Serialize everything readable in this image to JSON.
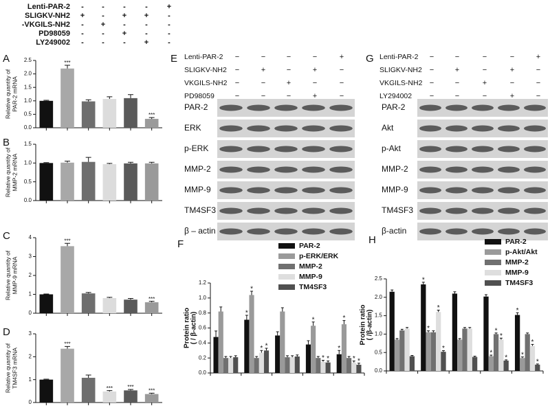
{
  "treatment_table": {
    "rows": [
      {
        "label": "Lenti-PAR-2",
        "marks": [
          "-",
          "-",
          "-",
          "-",
          "+"
        ]
      },
      {
        "label": "SLIGKV-NH2",
        "marks": [
          "+",
          "-",
          "+",
          "+",
          "-"
        ]
      },
      {
        "label": "-VKGILS-NH2",
        "marks": [
          "-",
          "+",
          "-",
          "-",
          "-"
        ]
      },
      {
        "label": "PD98059",
        "marks": [
          "-",
          "-",
          "+",
          "-",
          "-"
        ]
      },
      {
        "label": "LY249002",
        "marks": [
          "-",
          "-",
          "-",
          "+",
          "-"
        ]
      }
    ]
  },
  "blots": [
    {
      "panel": "E",
      "treatments": [
        {
          "label": "Lenti-PAR-2",
          "marks": [
            "−",
            "−",
            "−",
            "−",
            "+"
          ]
        },
        {
          "label": "SLIGKV-NH2",
          "marks": [
            "−",
            "+",
            "−",
            "+",
            "−"
          ]
        },
        {
          "label": "VKGILS-NH2",
          "marks": [
            "−",
            "−",
            "+",
            "−",
            "−"
          ]
        },
        {
          "label": "PD98059",
          "marks": [
            "−",
            "−",
            "−",
            "+",
            "−"
          ]
        }
      ],
      "rows": [
        "PAR-2",
        "ERK",
        "p-ERK",
        "MMP-2",
        "MMP-9",
        "TM4SF3",
        "β – actin"
      ]
    },
    {
      "panel": "G",
      "treatments": [
        {
          "label": "Lenti-PAR-2",
          "marks": [
            "−",
            "−",
            "−",
            "−",
            "+"
          ]
        },
        {
          "label": "SLIGKV-NH2",
          "marks": [
            "−",
            "+",
            "−",
            "+",
            "−"
          ]
        },
        {
          "label": "VKGILS-NH2",
          "marks": [
            "−",
            "−",
            "+",
            "−",
            "−"
          ]
        },
        {
          "label": "LY294002",
          "marks": [
            "−",
            "−",
            "−",
            "+",
            "−"
          ]
        }
      ],
      "rows": [
        "PAR-2",
        "Akt",
        "p-Akt",
        "MMP-2",
        "MMP-9",
        "TM4SF3",
        "β-actin"
      ]
    }
  ],
  "chart_data": [
    {
      "type": "bar",
      "panel": "A",
      "ylabel": [
        "Relative quantity of",
        "PAR-2 mRNA"
      ],
      "values": [
        1.0,
        2.2,
        0.98,
        1.07,
        1.1,
        0.33
      ],
      "errors": [
        0.02,
        0.12,
        0.06,
        0.08,
        0.13,
        0.05
      ],
      "annotations": [
        null,
        "***",
        null,
        null,
        null,
        "***"
      ],
      "colors": [
        "#111111",
        "#a8a8a8",
        "#6e6e6e",
        "#dcdcdc",
        "#5a5a5a",
        "#9a9a9a"
      ],
      "ylim": [
        0,
        2.5
      ],
      "yticks": [
        {
          "value": 0,
          "label": "0.0"
        },
        0.5,
        {
          "value": 1,
          "label": "1.0"
        },
        1.5,
        {
          "value": 2,
          "label": "2.0"
        },
        2.5
      ]
    },
    {
      "type": "bar",
      "panel": "B",
      "ylabel": [
        "Relative quantity of",
        "MMP-2 mRNA"
      ],
      "values": [
        1.0,
        1.01,
        1.03,
        0.97,
        0.99,
        0.99
      ],
      "errors": [
        0.01,
        0.04,
        0.12,
        0.02,
        0.03,
        0.03
      ],
      "colors": [
        "#111111",
        "#a8a8a8",
        "#6e6e6e",
        "#dcdcdc",
        "#5a5a5a",
        "#9a9a9a"
      ],
      "ylim": [
        0,
        1.5
      ],
      "yticks": [
        {
          "value": 0,
          "label": "0.0"
        },
        0.5,
        {
          "value": 1,
          "label": "1.0"
        },
        1.5
      ]
    },
    {
      "type": "bar",
      "panel": "C",
      "ylabel": [
        "Relative quantity of",
        "MMP-9 mRNA"
      ],
      "values": [
        1.0,
        3.55,
        1.05,
        0.8,
        0.72,
        0.58
      ],
      "errors": [
        0.02,
        0.15,
        0.05,
        0.04,
        0.06,
        0.05
      ],
      "annotations": [
        null,
        "***",
        null,
        null,
        null,
        "***"
      ],
      "colors": [
        "#111111",
        "#a8a8a8",
        "#6e6e6e",
        "#dcdcdc",
        "#5a5a5a",
        "#9a9a9a"
      ],
      "ylim": [
        0,
        4
      ],
      "yticks": [
        0,
        1,
        2,
        3,
        4
      ]
    },
    {
      "type": "bar",
      "panel": "D",
      "ylabel": [
        "Relative quantity of",
        "TM4SF3 mRNA"
      ],
      "values": [
        1.0,
        2.35,
        1.08,
        0.48,
        0.53,
        0.37
      ],
      "errors": [
        0.02,
        0.1,
        0.12,
        0.04,
        0.04,
        0.04
      ],
      "annotations": [
        null,
        "***",
        null,
        "***",
        "***",
        "***"
      ],
      "colors": [
        "#111111",
        "#a8a8a8",
        "#6e6e6e",
        "#dcdcdc",
        "#5a5a5a",
        "#9a9a9a"
      ],
      "ylim": [
        0,
        3
      ],
      "yticks": [
        0,
        1,
        2,
        3
      ]
    },
    {
      "type": "grouped-bar",
      "panel": "F",
      "ylabel": [
        "Protein ratio",
        "( / β-actin)"
      ],
      "ylim": [
        0,
        1.2
      ],
      "yticks": [
        {
          "value": 0,
          "label": "0.0"
        },
        0.2,
        0.4,
        0.6,
        0.8,
        {
          "value": 1,
          "label": "1.0"
        },
        1.2
      ],
      "series": [
        {
          "name": "PAR-2",
          "color": "#111111",
          "values": [
            0.48,
            0.71,
            0.5,
            0.38,
            0.25
          ],
          "errors": [
            0.08,
            0.06,
            0.05,
            0.05,
            0.05
          ],
          "annotations": [
            null,
            "*",
            null,
            null,
            "*"
          ]
        },
        {
          "name": "p-ERK/ERK",
          "color": "#9a9a9a",
          "values": [
            0.82,
            1.04,
            0.82,
            0.63,
            0.65
          ],
          "errors": [
            0.06,
            0.05,
            0.05,
            0.05,
            0.05
          ],
          "annotations": [
            null,
            "*",
            null,
            "*",
            "*"
          ]
        },
        {
          "name": "MMP-2",
          "color": "#707070",
          "values": [
            0.2,
            0.2,
            0.21,
            0.2,
            0.2
          ],
          "errors": [
            0.02,
            0.02,
            0.02,
            0.02,
            0.02
          ]
        },
        {
          "name": "MMP-9",
          "color": "#dedede",
          "values": [
            0.2,
            0.27,
            0.21,
            0.15,
            0.14
          ],
          "errors": [
            0.02,
            0.03,
            0.02,
            0.02,
            0.02
          ],
          "annotations": [
            null,
            "*",
            null,
            "*",
            "*"
          ]
        },
        {
          "name": "TM4SF3",
          "color": "#505050",
          "values": [
            0.21,
            0.3,
            0.22,
            0.14,
            0.11
          ],
          "errors": [
            0.02,
            0.03,
            0.02,
            0.02,
            0.02
          ],
          "annotations": [
            null,
            "*",
            null,
            "*",
            "*"
          ]
        }
      ]
    },
    {
      "type": "grouped-bar",
      "panel": "H",
      "ylabel": [
        "Protein ratio",
        "( /β-actin)"
      ],
      "ylim": [
        0,
        2.5
      ],
      "yticks": [
        {
          "value": 0,
          "label": "0.0"
        },
        0.5,
        {
          "value": 1,
          "label": "1.0"
        },
        1.5,
        {
          "value": 2,
          "label": "2.0"
        },
        2.5
      ],
      "series": [
        {
          "name": "PAR-2",
          "color": "#111111",
          "values": [
            2.15,
            2.35,
            2.1,
            2.02,
            1.52
          ],
          "errors": [
            0.05,
            0.06,
            0.05,
            0.05,
            0.06
          ],
          "annotations": [
            null,
            "*",
            null,
            null,
            "*"
          ]
        },
        {
          "name": "p-Akt/Akt",
          "color": "#9a9a9a",
          "values": [
            0.85,
            1.05,
            0.85,
            0.4,
            0.35
          ],
          "errors": [
            0.03,
            0.04,
            0.03,
            0.03,
            0.03
          ],
          "annotations": [
            null,
            "*",
            null,
            "*",
            "*"
          ]
        },
        {
          "name": "MMP-2",
          "color": "#707070",
          "values": [
            1.1,
            1.05,
            1.15,
            1.0,
            1.0
          ],
          "errors": [
            0.03,
            0.04,
            0.03,
            0.03,
            0.03
          ],
          "annotations": [
            null,
            null,
            null,
            "*",
            null
          ]
        },
        {
          "name": "MMP-9",
          "color": "#dedede",
          "values": [
            1.15,
            1.6,
            1.15,
            0.85,
            0.68
          ],
          "errors": [
            0.03,
            0.05,
            0.03,
            0.04,
            0.04
          ],
          "annotations": [
            null,
            "*",
            null,
            "*",
            "*"
          ]
        },
        {
          "name": "TM4SF3",
          "color": "#505050",
          "values": [
            0.4,
            0.52,
            0.38,
            0.28,
            0.17
          ],
          "errors": [
            0.02,
            0.03,
            0.02,
            0.02,
            0.02
          ],
          "annotations": [
            null,
            "*",
            null,
            "*",
            "*"
          ]
        }
      ]
    }
  ]
}
